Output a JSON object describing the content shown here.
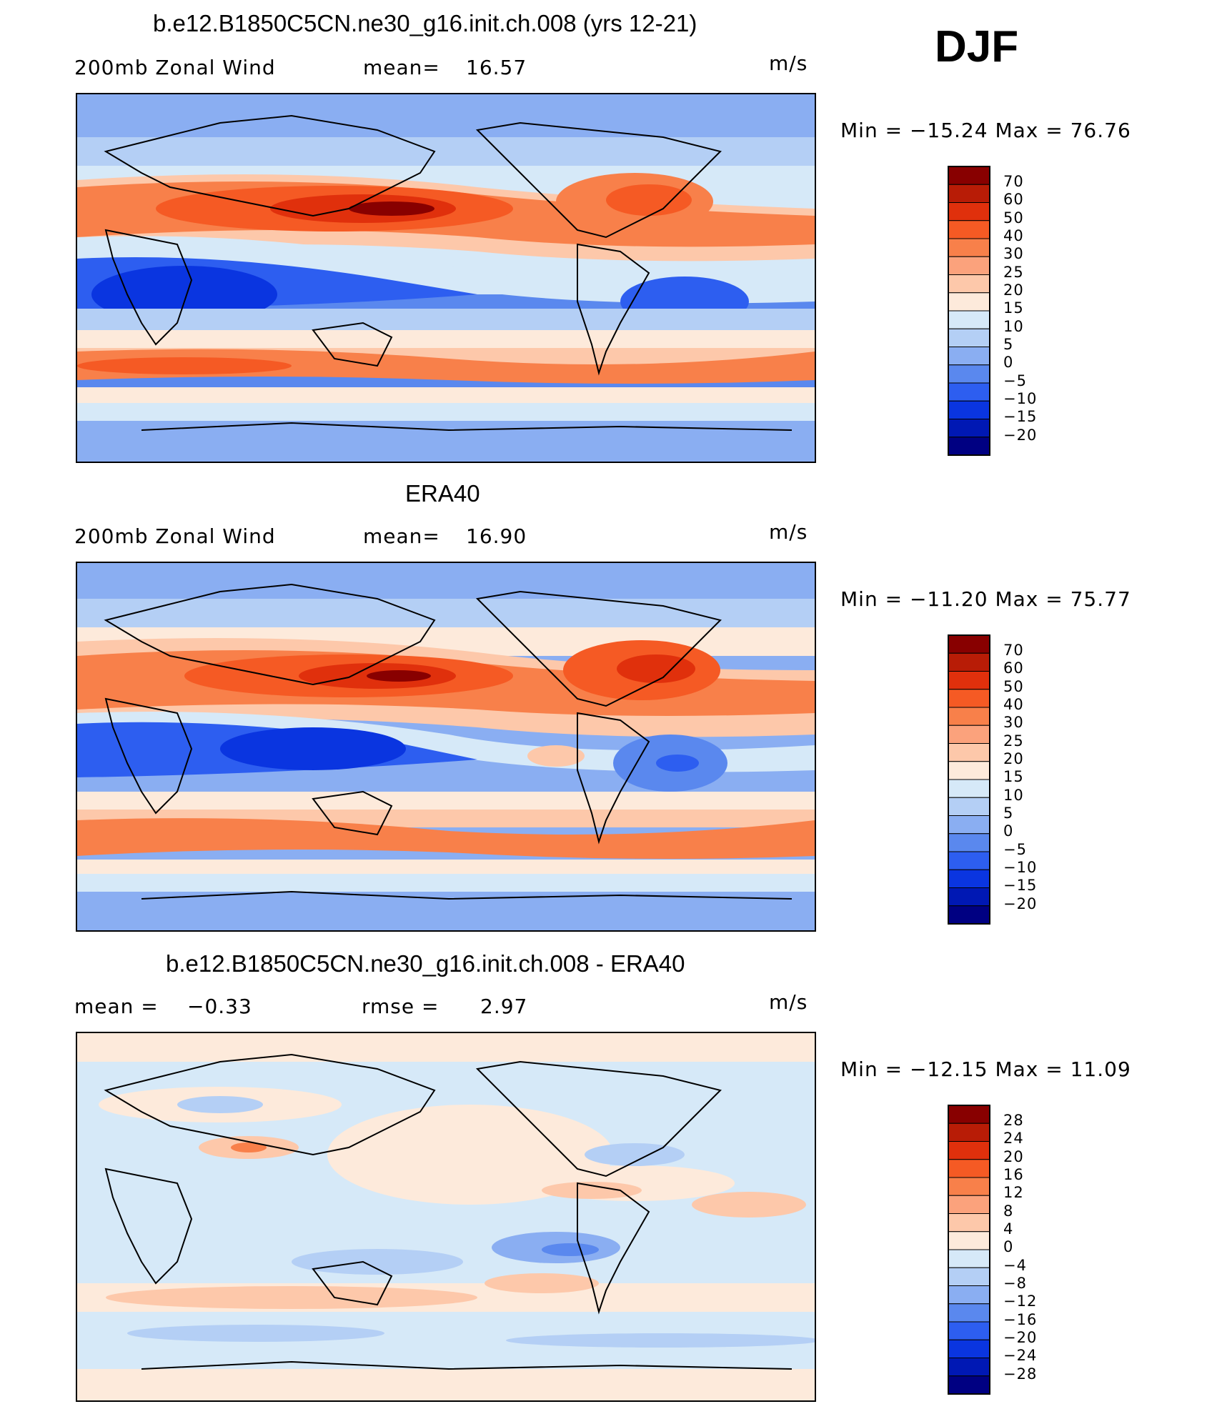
{
  "season": "DJF",
  "units_label": "m/s",
  "panels": [
    {
      "title": "b.e12.B1850C5CN.ne30_g16.init.ch.008 (yrs 12-21)",
      "left_label": "200mb Zonal Wind",
      "stat_label": "mean=",
      "stat_value": "16.57",
      "units": "m/s",
      "minmax": "Min = −15.24 Max =   76.76",
      "colorbar_labels": [
        "70",
        "60",
        "50",
        "40",
        "30",
        "25",
        "20",
        "15",
        "10",
        "5",
        "0",
        "−5",
        "−10",
        "−15",
        "−20"
      ]
    },
    {
      "title": "ERA40",
      "left_label": "200mb Zonal Wind",
      "stat_label": "mean=",
      "stat_value": "16.90",
      "units": "m/s",
      "minmax": "Min = −11.20 Max =   75.77",
      "colorbar_labels": [
        "70",
        "60",
        "50",
        "40",
        "30",
        "25",
        "20",
        "15",
        "10",
        "5",
        "0",
        "−5",
        "−10",
        "−15",
        "−20"
      ]
    },
    {
      "title": "b.e12.B1850C5CN.ne30_g16.init.ch.008 - ERA40",
      "left_label": "mean =",
      "left_value": "−0.33",
      "stat_label": "rmse =",
      "stat_value": "2.97",
      "units": "m/s",
      "minmax": "Min = −12.15 Max =   11.09",
      "colorbar_labels": [
        "28",
        "24",
        "20",
        "16",
        "12",
        "8",
        "4",
        "0",
        "−4",
        "−8",
        "−12",
        "−16",
        "−20",
        "−24",
        "−28"
      ]
    }
  ],
  "colorbar_colors": [
    "#880000",
    "#b81c06",
    "#e0300c",
    "#f55a24",
    "#f8804a",
    "#fba27c",
    "#fdc8aa",
    "#fdeadb",
    "#d6e9f8",
    "#b4cff5",
    "#8aaef2",
    "#5a88ee",
    "#2d5ef0",
    "#0a35e0",
    "#0018b4",
    "#000082"
  ],
  "map_legend": {
    "description": "filled contour map of 200mb zonal wind over a world map (Pacific-centred)"
  }
}
